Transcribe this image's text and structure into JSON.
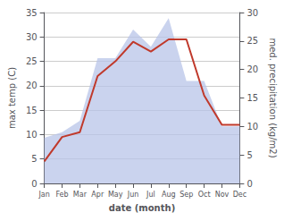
{
  "chart_data": {
    "type": "line",
    "categories": [
      "Jan",
      "Feb",
      "Mar",
      "Apr",
      "May",
      "Jun",
      "Jul",
      "Aug",
      "Sep",
      "Oct",
      "Nov",
      "Dec"
    ],
    "series": [
      {
        "type": "area",
        "axis": "y2",
        "color": "#b8c4e8",
        "values": [
          8.0,
          9.0,
          11.0,
          22.0,
          22.0,
          27.0,
          24.0,
          29.0,
          18.0,
          18.0,
          10.0,
          10.0
        ]
      },
      {
        "type": "line",
        "color": "#c0392b",
        "values": [
          4.5,
          9.5,
          10.5,
          22.0,
          25.0,
          29.0,
          27.0,
          29.5,
          29.5,
          18.0,
          12.0,
          12.0
        ]
      }
    ],
    "xlabel": "date (month)",
    "ylabel": "max temp (C)",
    "y2label": "med. precipitation (kg/m2)",
    "ylim": [
      0,
      35
    ],
    "yticks": [
      0,
      5,
      10,
      15,
      20,
      25,
      30,
      35
    ],
    "y2lim": [
      0,
      30
    ],
    "y2ticks": [
      0,
      5,
      10,
      15,
      20,
      25,
      30
    ],
    "grid": true
  }
}
